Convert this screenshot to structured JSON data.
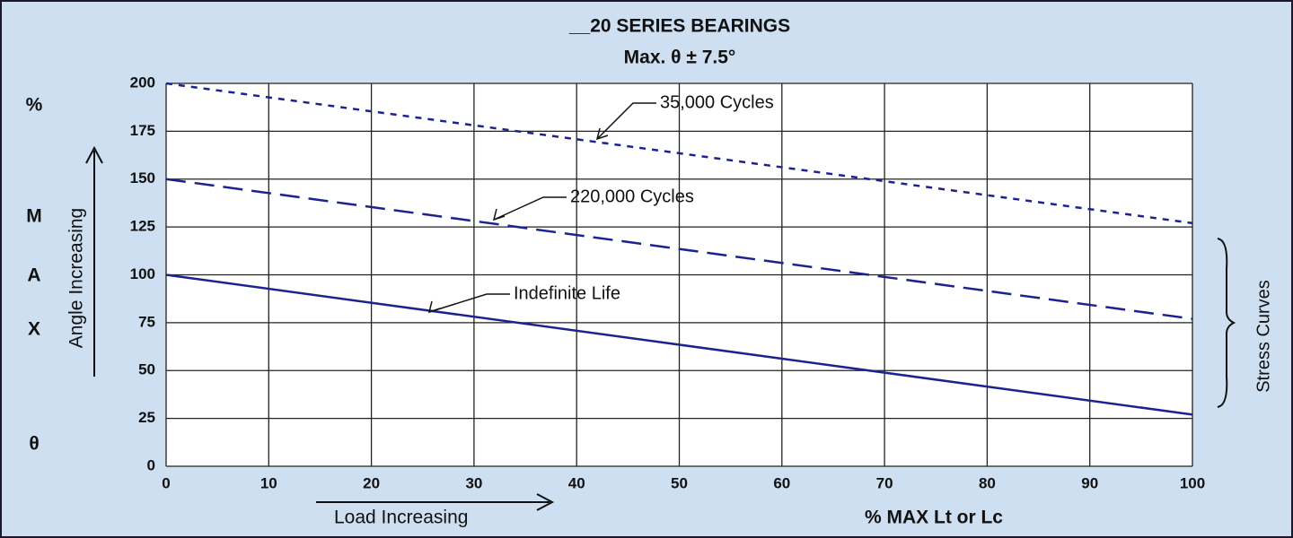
{
  "chart_data": {
    "type": "line",
    "title": "__20 SERIES BEARINGS",
    "subtitle": "Max. θ ± 7.5°",
    "ylabel_parts": [
      "%",
      "M",
      "A",
      "X",
      "θ"
    ],
    "ylabel": "Angle Increasing",
    "xlabel_arrow": "Load Increasing",
    "xlabel": "% MAX Lt or Lc",
    "right_label": "Stress Curves",
    "x": [
      0,
      100
    ],
    "series": [
      {
        "name": "35,000 Cycles",
        "color": "#1c2390",
        "style": "dotted",
        "values": [
          200,
          127
        ]
      },
      {
        "name": "220,000 Cycles",
        "color": "#1c2390",
        "style": "dashed",
        "values": [
          150,
          77
        ]
      },
      {
        "name": "Indefinite Life",
        "color": "#1c2390",
        "style": "solid",
        "values": [
          100,
          27
        ]
      }
    ],
    "xlim": [
      0,
      100
    ],
    "xticks": [
      0,
      10,
      20,
      30,
      40,
      50,
      60,
      70,
      80,
      90,
      100
    ],
    "ylim": [
      0,
      200
    ],
    "yticks": [
      0,
      25,
      50,
      75,
      100,
      125,
      150,
      175,
      200
    ],
    "grid": true
  }
}
